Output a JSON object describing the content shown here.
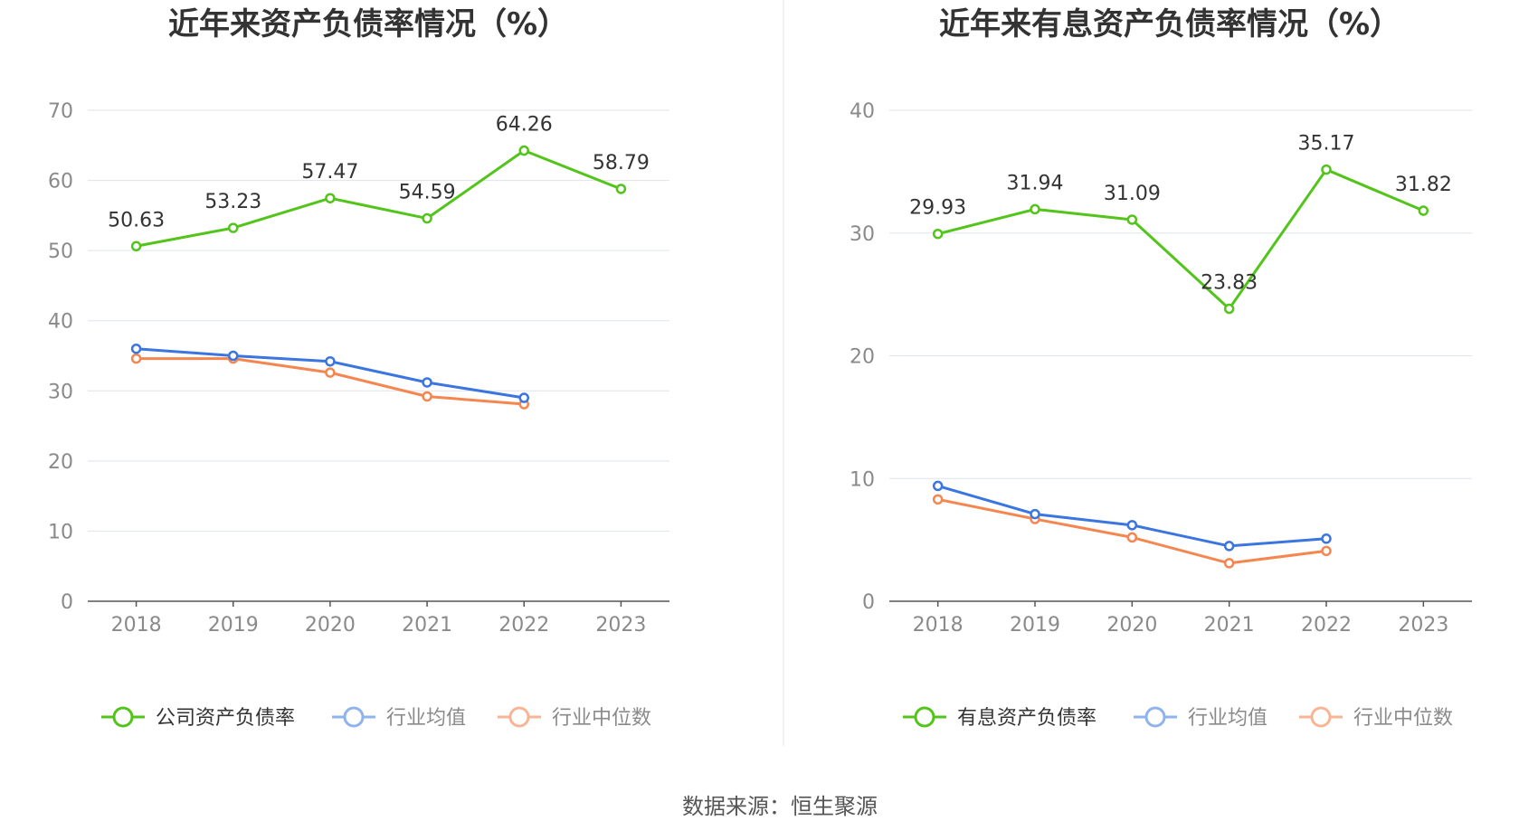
{
  "source": "数据来源：恒生聚源",
  "chart_data": [
    {
      "type": "line",
      "title": "近年来资产负债率情况（%）",
      "categories": [
        "2018",
        "2019",
        "2020",
        "2021",
        "2022",
        "2023"
      ],
      "ylim": [
        0,
        70
      ],
      "yticks": [
        0,
        10,
        20,
        30,
        40,
        50,
        60,
        70
      ],
      "grid": true,
      "legend_position": "bottom",
      "series": [
        {
          "name": "公司资产负债率",
          "color": "#52c41a",
          "labels": true,
          "values": [
            50.63,
            53.23,
            57.47,
            54.59,
            64.26,
            58.79
          ]
        },
        {
          "name": "行业均值",
          "color": "#3a75e0",
          "labels": false,
          "values": [
            36.0,
            35.0,
            34.2,
            31.2,
            29.0,
            null
          ]
        },
        {
          "name": "行业中位数",
          "color": "#f5864f",
          "labels": false,
          "values": [
            34.6,
            34.6,
            32.6,
            29.2,
            28.1,
            null
          ]
        }
      ]
    },
    {
      "type": "line",
      "title": "近年来有息资产负债率情况（%）",
      "categories": [
        "2018",
        "2019",
        "2020",
        "2021",
        "2022",
        "2023"
      ],
      "ylim": [
        0,
        40
      ],
      "yticks": [
        0,
        10,
        20,
        30,
        40
      ],
      "grid": true,
      "legend_position": "bottom",
      "series": [
        {
          "name": "有息资产负债率",
          "color": "#52c41a",
          "labels": true,
          "values": [
            29.93,
            31.94,
            31.09,
            23.83,
            35.17,
            31.82
          ]
        },
        {
          "name": "行业均值",
          "color": "#3a75e0",
          "labels": false,
          "values": [
            9.4,
            7.1,
            6.2,
            4.5,
            5.1,
            null
          ]
        },
        {
          "name": "行业中位数",
          "color": "#f5864f",
          "labels": false,
          "values": [
            8.3,
            6.7,
            5.2,
            3.1,
            4.1,
            null
          ]
        }
      ]
    }
  ]
}
